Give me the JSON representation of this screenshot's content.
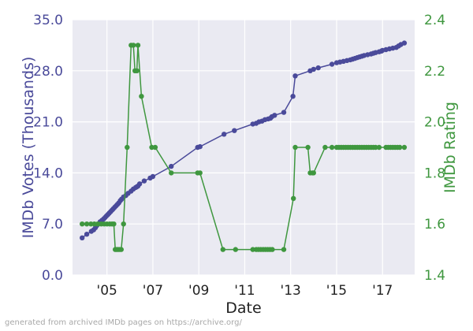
{
  "chart_data": {
    "type": "line",
    "xlabel": "Date",
    "ylabel_left": "IMDb Votes (Thousands)",
    "ylabel_right": "IMDb Rating",
    "credit": "generated from archived IMDb pages on https://archive.org/",
    "xlim": [
      2003.5,
      2018.4
    ],
    "x_ticks": [
      2005,
      2007,
      2009,
      2011,
      2013,
      2015,
      2017
    ],
    "x_tick_labels": [
      "'05",
      "'07",
      "'09",
      "'11",
      "'13",
      "'15",
      "'17"
    ],
    "ylim_left": [
      0.0,
      35.0
    ],
    "y_ticks_left": [
      "0.0",
      "7.0",
      "14.0",
      "21.0",
      "28.0",
      "35.0"
    ],
    "ylim_right": [
      1.4,
      2.4
    ],
    "y_ticks_right": [
      "1.4",
      "1.6",
      "1.8",
      "2.0",
      "2.2",
      "2.4"
    ],
    "grid": true,
    "colors": {
      "votes": "#4a4a9a",
      "rating": "#3f973f",
      "plot_bg": "#eaeaf2",
      "grid": "#ffffff",
      "left_axis_text": "#4a4a9a",
      "right_axis_text": "#3f973f"
    },
    "series": [
      {
        "axis": "left",
        "x": [
          2003.92,
          2004.12,
          2004.32,
          2004.42,
          2004.5,
          2004.56,
          2004.62,
          2004.7,
          2004.78,
          2004.86,
          2004.92,
          2004.98,
          2005.04,
          2005.1,
          2005.16,
          2005.22,
          2005.28,
          2005.34,
          2005.4,
          2005.46,
          2005.52,
          2005.58,
          2005.64,
          2005.72,
          2005.82,
          2005.92,
          2006.05,
          2006.15,
          2006.25,
          2006.3,
          2006.35,
          2006.42,
          2006.62,
          2006.88,
          2007.0,
          2007.8,
          2008.95,
          2009.05,
          2010.1,
          2010.55,
          2011.35,
          2011.5,
          2011.62,
          2011.75,
          2011.88,
          2012.02,
          2012.12,
          2012.18,
          2012.3,
          2012.7,
          2013.1,
          2013.2,
          2013.85,
          2014.0,
          2014.2,
          2014.8,
          2015.0,
          2015.15,
          2015.3,
          2015.45,
          2015.6,
          2015.7,
          2015.8,
          2015.9,
          2016.0,
          2016.1,
          2016.2,
          2016.35,
          2016.5,
          2016.6,
          2016.7,
          2016.85,
          2016.95,
          2017.0,
          2017.15,
          2017.3,
          2017.45,
          2017.6,
          2017.7,
          2017.8,
          2017.95
        ],
        "values": [
          5.1,
          5.6,
          6.0,
          6.2,
          6.5,
          6.8,
          7.0,
          7.3,
          7.5,
          7.7,
          7.9,
          8.1,
          8.3,
          8.5,
          8.7,
          8.9,
          9.1,
          9.3,
          9.5,
          9.7,
          9.9,
          10.2,
          10.4,
          10.7,
          10.9,
          11.2,
          11.5,
          11.8,
          12.0,
          12.1,
          12.2,
          12.5,
          12.9,
          13.3,
          13.5,
          14.9,
          17.5,
          17.6,
          19.3,
          19.8,
          20.7,
          20.8,
          21.0,
          21.1,
          21.3,
          21.4,
          21.5,
          21.7,
          21.9,
          22.3,
          24.5,
          27.3,
          28.0,
          28.2,
          28.4,
          28.9,
          29.1,
          29.2,
          29.3,
          29.4,
          29.5,
          29.6,
          29.7,
          29.8,
          29.9,
          30.0,
          30.1,
          30.2,
          30.3,
          30.4,
          30.5,
          30.6,
          30.7,
          30.8,
          30.9,
          31.0,
          31.1,
          31.2,
          31.4,
          31.6,
          31.8
        ]
      },
      {
        "axis": "right",
        "x": [
          2003.92,
          2004.12,
          2004.3,
          2004.45,
          2004.6,
          2004.75,
          2004.88,
          2005.0,
          2005.12,
          2005.22,
          2005.3,
          2005.36,
          2005.42,
          2005.48,
          2005.55,
          2005.62,
          2005.72,
          2005.88,
          2006.05,
          2006.15,
          2006.22,
          2006.3,
          2006.35,
          2006.5,
          2006.95,
          2007.1,
          2007.8,
          2008.95,
          2009.05,
          2010.05,
          2010.6,
          2011.35,
          2011.5,
          2011.6,
          2011.7,
          2011.8,
          2011.9,
          2012.0,
          2012.1,
          2012.2,
          2012.7,
          2013.12,
          2013.2,
          2013.75,
          2013.85,
          2013.95,
          2014.0,
          2014.5,
          2014.8,
          2015.0,
          2015.1,
          2015.2,
          2015.3,
          2015.4,
          2015.5,
          2015.6,
          2015.7,
          2015.8,
          2015.9,
          2016.0,
          2016.1,
          2016.2,
          2016.3,
          2016.4,
          2016.5,
          2016.6,
          2016.7,
          2016.85,
          2017.15,
          2017.25,
          2017.35,
          2017.45,
          2017.55,
          2017.65,
          2017.75,
          2017.95
        ],
        "values": [
          1.6,
          1.6,
          1.6,
          1.6,
          1.6,
          1.6,
          1.6,
          1.6,
          1.6,
          1.6,
          1.6,
          1.5,
          1.5,
          1.5,
          1.5,
          1.5,
          1.6,
          1.9,
          2.3,
          2.3,
          2.2,
          2.2,
          2.3,
          2.1,
          1.9,
          1.9,
          1.8,
          1.8,
          1.8,
          1.5,
          1.5,
          1.5,
          1.5,
          1.5,
          1.5,
          1.5,
          1.5,
          1.5,
          1.5,
          1.5,
          1.5,
          1.7,
          1.9,
          1.9,
          1.8,
          1.8,
          1.8,
          1.9,
          1.9,
          1.9,
          1.9,
          1.9,
          1.9,
          1.9,
          1.9,
          1.9,
          1.9,
          1.9,
          1.9,
          1.9,
          1.9,
          1.9,
          1.9,
          1.9,
          1.9,
          1.9,
          1.9,
          1.9,
          1.9,
          1.9,
          1.9,
          1.9,
          1.9,
          1.9,
          1.9,
          1.9
        ]
      }
    ]
  }
}
